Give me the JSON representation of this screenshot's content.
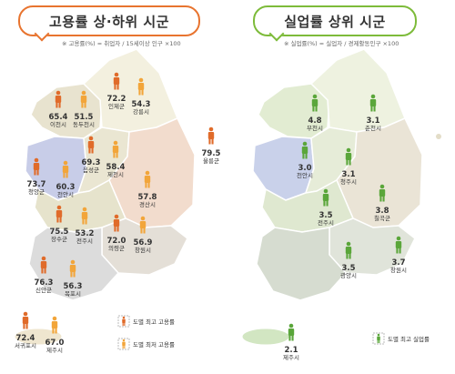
{
  "left": {
    "title": "고용률 상·하위 시군",
    "formula": "※ 고용률(%) = 취업자 / 15세이상 인구 ×100",
    "cities": [
      {
        "name": "인제군",
        "value": "72.2",
        "type": "high"
      },
      {
        "name": "강릉시",
        "value": "54.3",
        "type": "low"
      },
      {
        "name": "이천시",
        "value": "65.4",
        "type": "high"
      },
      {
        "name": "동두천시",
        "value": "51.5",
        "type": "low"
      },
      {
        "name": "울릉군",
        "value": "79.5",
        "type": "high"
      },
      {
        "name": "음성군",
        "value": "69.3",
        "type": "high"
      },
      {
        "name": "제천시",
        "value": "58.4",
        "type": "low"
      },
      {
        "name": "청양군",
        "value": "73.7",
        "type": "high"
      },
      {
        "name": "천안시",
        "value": "60.3",
        "type": "low"
      },
      {
        "name": "경산시",
        "value": "57.8",
        "type": "low"
      },
      {
        "name": "장수군",
        "value": "75.5",
        "type": "high"
      },
      {
        "name": "전주시",
        "value": "53.2",
        "type": "low"
      },
      {
        "name": "의령군",
        "value": "72.0",
        "type": "high"
      },
      {
        "name": "창원시",
        "value": "56.9",
        "type": "low"
      },
      {
        "name": "신안군",
        "value": "76.3",
        "type": "high"
      },
      {
        "name": "목포시",
        "value": "56.3",
        "type": "low"
      },
      {
        "name": "서귀포시",
        "value": "72.4",
        "type": "high"
      },
      {
        "name": "제주시",
        "value": "67.0",
        "type": "low"
      }
    ],
    "legend": [
      {
        "label": "도별 최고 고용률",
        "color": "#e06b2a"
      },
      {
        "label": "도별 최저 고용률",
        "color": "#f2a53a"
      }
    ]
  },
  "right": {
    "title": "실업률 상위 시군",
    "formula": "※ 실업률(%) = 실업자 / 경제활동인구 ×100",
    "cities": [
      {
        "name": "부천시",
        "value": "4.8"
      },
      {
        "name": "춘천시",
        "value": "3.1"
      },
      {
        "name": "천안시",
        "value": "3.0"
      },
      {
        "name": "청주시",
        "value": "3.1"
      },
      {
        "name": "칠곡군",
        "value": "3.8"
      },
      {
        "name": "전주시",
        "value": "3.5"
      },
      {
        "name": "창원시",
        "value": "3.7"
      },
      {
        "name": "광양시",
        "value": "3.5"
      },
      {
        "name": "제주시",
        "value": "2.1"
      }
    ],
    "legend": [
      {
        "label": "도별 최고 실업률",
        "color": "#5aa63a"
      }
    ]
  },
  "colors": {
    "high": "#e06b2a",
    "low": "#f2a53a",
    "green": "#5aa63a",
    "title_left_border": "#e8742f",
    "title_right_border": "#7dbb3a"
  }
}
